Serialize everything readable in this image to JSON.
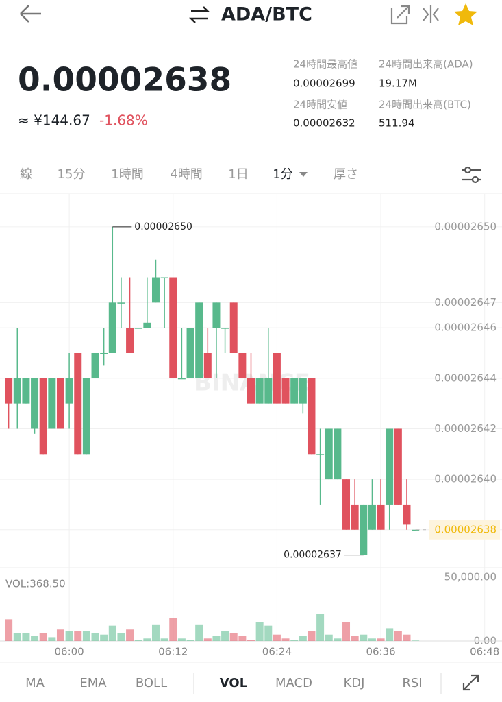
{
  "header": {
    "pair": "ADA/BTC"
  },
  "ticker": {
    "price": "0.00002638",
    "fiat": "≈ ¥144.67",
    "change": "-1.68%",
    "stats": [
      {
        "label": "24時間最高値",
        "value": "0.00002699"
      },
      {
        "label": "24時間出来高(ADA)",
        "value": "19.17M"
      },
      {
        "label": "24時間安値",
        "value": "0.00002632"
      },
      {
        "label": "24時間出来高(BTC)",
        "value": "511.94"
      }
    ]
  },
  "intervals": {
    "items": [
      "線",
      "15分",
      "1時間",
      "4時間",
      "1日",
      "1分",
      "厚さ"
    ],
    "active": "1分"
  },
  "indicators": {
    "items": [
      "MA",
      "EMA",
      "BOLL",
      "VOL",
      "MACD",
      "KDJ",
      "RSI"
    ],
    "active": "VOL"
  },
  "watermark": "BINANCE",
  "chart_data": [
    {
      "type": "candlestick",
      "up_color": "#58b98c",
      "down_color": "#e0525e",
      "grid": true,
      "x": [
        "05:53",
        "05:54",
        "05:55",
        "05:56",
        "05:57",
        "05:58",
        "05:59",
        "06:00",
        "06:01",
        "06:02",
        "06:03",
        "06:04",
        "06:05",
        "06:06",
        "06:07",
        "06:08",
        "06:09",
        "06:10",
        "06:11",
        "06:12",
        "06:13",
        "06:14",
        "06:15",
        "06:16",
        "06:17",
        "06:18",
        "06:19",
        "06:20",
        "06:21",
        "06:22",
        "06:23",
        "06:24",
        "06:25",
        "06:26",
        "06:27",
        "06:28",
        "06:29",
        "06:30",
        "06:31",
        "06:32",
        "06:33",
        "06:34",
        "06:35",
        "06:36",
        "06:37",
        "06:38",
        "06:39",
        "06:40"
      ],
      "open": [
        2.644e-05,
        2.643e-05,
        2.643e-05,
        2.642e-05,
        2.644e-05,
        2.642e-05,
        2.644e-05,
        2.643e-05,
        2.645e-05,
        2.641e-05,
        2.644e-05,
        2.645e-05,
        2.645e-05,
        2.647e-05,
        2.646e-05,
        2.646e-05,
        2.646e-05,
        2.647e-05,
        2.648e-05,
        2.648e-05,
        2.644e-05,
        2.644e-05,
        2.644e-05,
        2.645e-05,
        2.646e-05,
        2.646e-05,
        2.647e-05,
        2.645e-05,
        2.644e-05,
        2.643e-05,
        2.643e-05,
        2.645e-05,
        2.644e-05,
        2.643e-05,
        2.643e-05,
        2.644e-05,
        2.641e-05,
        2.64e-05,
        2.64e-05,
        2.64e-05,
        2.639e-05,
        2.637e-05,
        2.638e-05,
        2.639e-05,
        2.639e-05,
        2.642e-05,
        2.639e-05,
        2.638e-05
      ],
      "high": [
        2.644e-05,
        2.646e-05,
        2.644e-05,
        2.644e-05,
        2.644e-05,
        2.644e-05,
        2.644e-05,
        2.645e-05,
        2.645e-05,
        2.644e-05,
        2.645e-05,
        2.646e-05,
        2.65e-05,
        2.648e-05,
        2.648e-05,
        2.646e-05,
        2.648e-05,
        2.6487e-05,
        2.648e-05,
        2.648e-05,
        2.646e-05,
        2.646e-05,
        2.647e-05,
        2.646e-05,
        2.647e-05,
        2.646e-05,
        2.647e-05,
        2.645e-05,
        2.645e-05,
        2.644e-05,
        2.646e-05,
        2.645e-05,
        2.644e-05,
        2.644e-05,
        2.644e-05,
        2.644e-05,
        2.642e-05,
        2.642e-05,
        2.642e-05,
        2.64e-05,
        2.64e-05,
        2.639e-05,
        2.64e-05,
        2.64e-05,
        2.642e-05,
        2.642e-05,
        2.64e-05,
        2.638e-05
      ],
      "low": [
        2.642e-05,
        2.642e-05,
        2.643e-05,
        2.6418e-05,
        2.641e-05,
        2.642e-05,
        2.642e-05,
        2.642e-05,
        2.641e-05,
        2.641e-05,
        2.644e-05,
        2.6445e-05,
        2.645e-05,
        2.646e-05,
        2.645e-05,
        2.646e-05,
        2.646e-05,
        2.647e-05,
        2.646e-05,
        2.644e-05,
        2.644e-05,
        2.644e-05,
        2.644e-05,
        2.644e-05,
        2.644e-05,
        2.645e-05,
        2.645e-05,
        2.644e-05,
        2.643e-05,
        2.643e-05,
        2.643e-05,
        2.643e-05,
        2.643e-05,
        2.643e-05,
        2.6426e-05,
        2.641e-05,
        2.639e-05,
        2.64e-05,
        2.64e-05,
        2.638e-05,
        2.638e-05,
        2.637e-05,
        2.638e-05,
        2.638e-05,
        2.638e-05,
        2.639e-05,
        2.638e-05,
        2.638e-05
      ],
      "close": [
        2.643e-05,
        2.644e-05,
        2.644e-05,
        2.644e-05,
        2.641e-05,
        2.644e-05,
        2.642e-05,
        2.644e-05,
        2.641e-05,
        2.644e-05,
        2.645e-05,
        2.645e-05,
        2.647e-05,
        2.647e-05,
        2.645e-05,
        2.646e-05,
        2.6462e-05,
        2.648e-05,
        2.648e-05,
        2.644e-05,
        2.644e-05,
        2.646e-05,
        2.647e-05,
        2.644e-05,
        2.647e-05,
        2.646e-05,
        2.645e-05,
        2.644e-05,
        2.643e-05,
        2.644e-05,
        2.644e-05,
        2.643e-05,
        2.643e-05,
        2.644e-05,
        2.644e-05,
        2.641e-05,
        2.641e-05,
        2.642e-05,
        2.642e-05,
        2.638e-05,
        2.638e-05,
        2.639e-05,
        2.639e-05,
        2.638e-05,
        2.642e-05,
        2.639e-05,
        2.6382e-05,
        2.638e-05
      ],
      "xlim": [
        "05:52",
        "06:50"
      ],
      "xticks": [
        "06:00",
        "06:12",
        "06:24",
        "06:36",
        "06:48"
      ],
      "ylim": [
        2.6365e-05,
        2.6513e-05
      ],
      "yticks": [
        {
          "value": 2.65e-05,
          "label": "0.00002650"
        },
        {
          "value": 2.647e-05,
          "label": "0.00002647"
        },
        {
          "value": 2.646e-05,
          "label": "0.00002646"
        },
        {
          "value": 2.644e-05,
          "label": "0.00002644"
        },
        {
          "value": 2.642e-05,
          "label": "0.00002642"
        },
        {
          "value": 2.64e-05,
          "label": "0.00002640"
        },
        {
          "value": 2.638e-05,
          "label": "0.00002638"
        }
      ],
      "last_price": 2.638e-05,
      "annotations": [
        {
          "label": "0.00002650",
          "value": 2.65e-05
        },
        {
          "label": "0.00002637",
          "value": 2.637e-05
        }
      ]
    },
    {
      "type": "bar",
      "label": "VOL:368.50",
      "values": [
        17000,
        6000,
        6000,
        4000,
        6000,
        3000,
        9000,
        8000,
        8000,
        8000,
        6000,
        5000,
        12000,
        6000,
        9000,
        1000,
        2000,
        13000,
        2000,
        18000,
        2000,
        1000,
        13000,
        2000,
        4000,
        8000,
        6000,
        4000,
        1000,
        15000,
        12000,
        5000,
        2000,
        1000,
        4000,
        8000,
        21000,
        5000,
        2000,
        15000,
        4000,
        5000,
        2000,
        2000,
        10000,
        8000,
        5000,
        368.5
      ],
      "ylim": [
        0,
        50000
      ],
      "yticks": [
        {
          "value": 50000,
          "label": "50,000.00"
        },
        {
          "value": 0,
          "label": "0.00"
        }
      ]
    }
  ]
}
